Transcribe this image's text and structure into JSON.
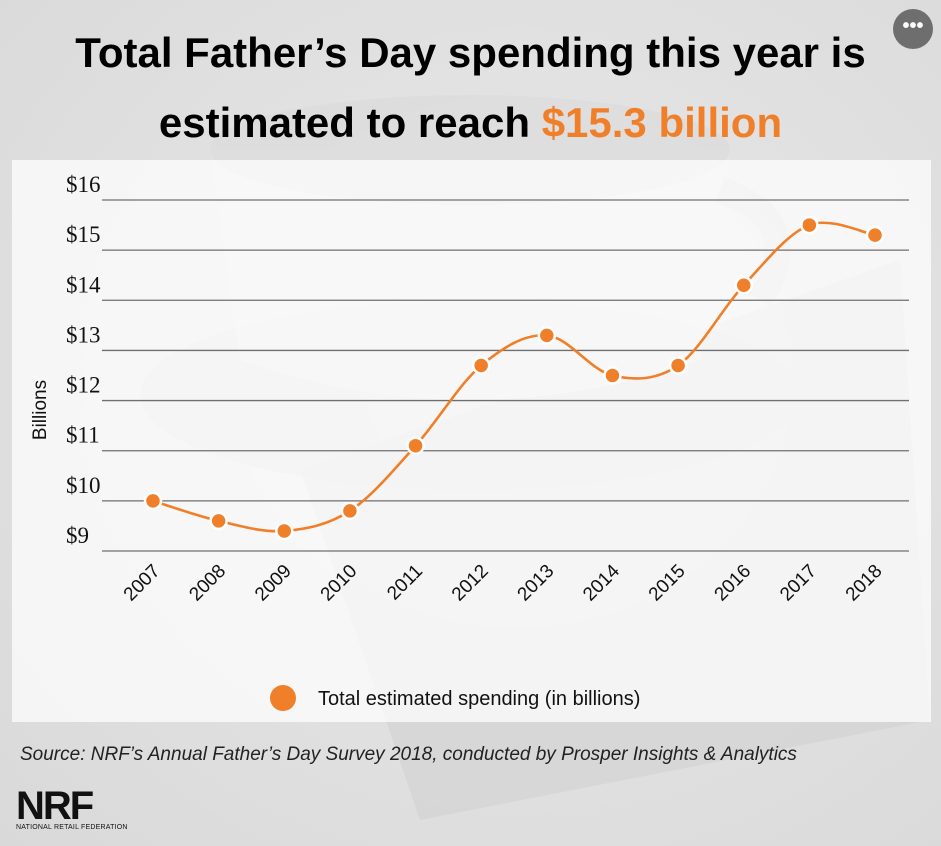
{
  "title": {
    "line1": "Total Father’s Day spending this year is",
    "line2_prefix": "estimated to reach ",
    "line2_highlight": "$15.3 billion"
  },
  "more_button": "•••",
  "source": "Source: NRF’s Annual Father’s Day Survey 2018, conducted by Prosper Insights & Analytics",
  "logo": {
    "main": "NRF",
    "sub": "NATIONAL RETAIL FEDERATION"
  },
  "colors": {
    "accent": "#f07f2a",
    "grid": "#6f6f6f"
  },
  "chart_data": {
    "type": "line",
    "title": "",
    "xlabel": "",
    "ylabel": "Billions",
    "x": [
      "2007",
      "2008",
      "2009",
      "2010",
      "2011",
      "2012",
      "2013",
      "2014",
      "2015",
      "2016",
      "2017",
      "2018"
    ],
    "series": [
      {
        "name": "Total estimated spending (in billions)",
        "values": [
          10.0,
          9.6,
          9.4,
          9.8,
          11.1,
          12.7,
          13.3,
          12.5,
          12.7,
          14.3,
          15.5,
          15.3
        ]
      }
    ],
    "ylim": [
      9,
      16
    ],
    "yticks": [
      "$9",
      "$10",
      "$11",
      "$12",
      "$13",
      "$14",
      "$15",
      "$16"
    ],
    "grid": true,
    "smooth": true,
    "legend": "bottom"
  }
}
